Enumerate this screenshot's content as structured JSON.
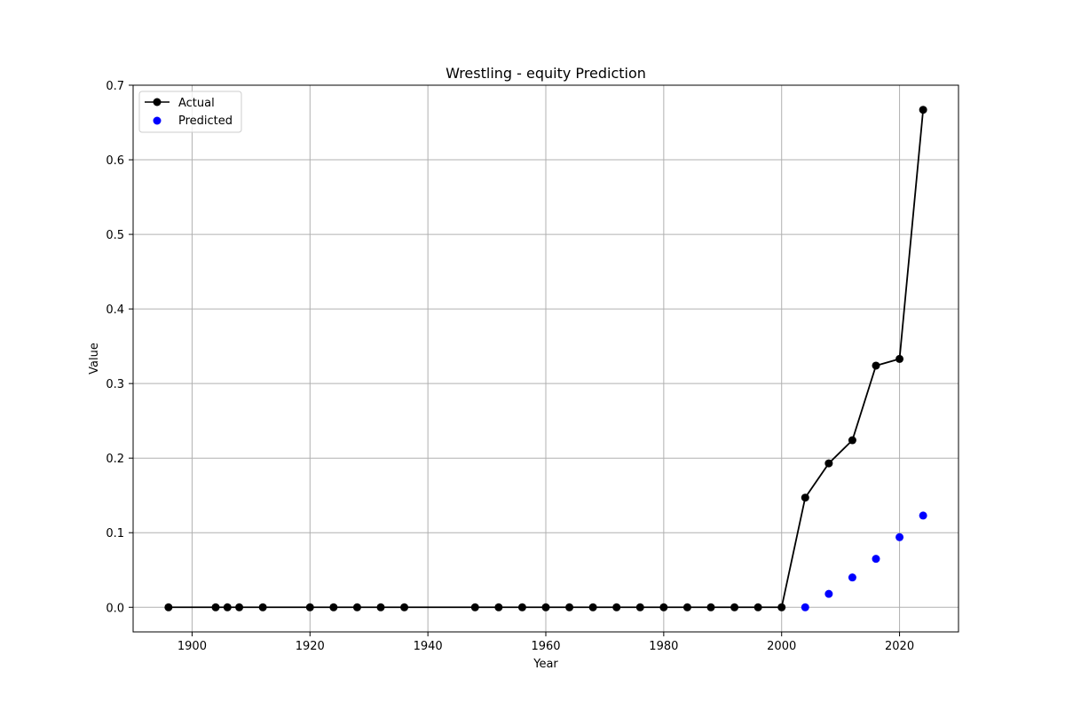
{
  "chart_data": {
    "type": "line",
    "title": "Wrestling - equity Prediction",
    "xlabel": "Year",
    "ylabel": "Value",
    "xlim": [
      1890,
      2030
    ],
    "ylim": [
      -0.033,
      0.7
    ],
    "x_ticks": [
      1900,
      1920,
      1940,
      1960,
      1980,
      2000,
      2020
    ],
    "y_ticks": [
      0.0,
      0.1,
      0.2,
      0.3,
      0.4,
      0.5,
      0.6,
      0.7
    ],
    "x_tick_labels": [
      "1900",
      "1920",
      "1940",
      "1960",
      "1980",
      "2000",
      "2020"
    ],
    "y_tick_labels": [
      "0.0",
      "0.1",
      "0.2",
      "0.3",
      "0.4",
      "0.5",
      "0.6",
      "0.7"
    ],
    "grid": true,
    "legend_position": "top-left",
    "series": [
      {
        "name": "Actual",
        "kind": "line-marker",
        "color": "#000000",
        "x": [
          1896,
          1904,
          1906,
          1908,
          1912,
          1920,
          1924,
          1928,
          1932,
          1936,
          1948,
          1952,
          1956,
          1960,
          1964,
          1968,
          1972,
          1976,
          1980,
          1984,
          1988,
          1992,
          1996,
          2000,
          2004,
          2008,
          2012,
          2016,
          2020,
          2024
        ],
        "y": [
          0,
          0,
          0,
          0,
          0,
          0,
          0,
          0,
          0,
          0,
          0,
          0,
          0,
          0,
          0,
          0,
          0,
          0,
          0,
          0,
          0,
          0,
          0,
          0,
          0.147,
          0.193,
          0.224,
          0.324,
          0.333,
          0.667
        ]
      },
      {
        "name": "Predicted",
        "kind": "scatter",
        "color": "#0000ff",
        "x": [
          2004,
          2008,
          2012,
          2016,
          2020,
          2024
        ],
        "y": [
          0.0,
          0.018,
          0.04,
          0.065,
          0.094,
          0.123
        ]
      }
    ]
  }
}
